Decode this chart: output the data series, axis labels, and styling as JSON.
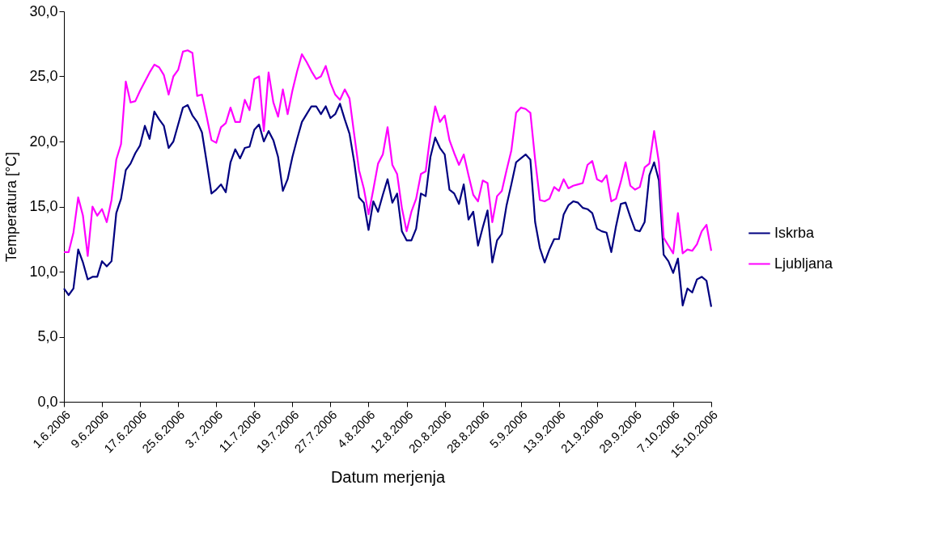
{
  "chart_data": {
    "type": "line",
    "xlabel": "Datum merjenja",
    "ylabel": "Temperatura [°C]",
    "x": [
      "2006-06-01",
      "2006-06-02",
      "2006-06-03",
      "2006-06-04",
      "2006-06-05",
      "2006-06-06",
      "2006-06-07",
      "2006-06-08",
      "2006-06-09",
      "2006-06-10",
      "2006-06-11",
      "2006-06-12",
      "2006-06-13",
      "2006-06-14",
      "2006-06-15",
      "2006-06-16",
      "2006-06-17",
      "2006-06-18",
      "2006-06-19",
      "2006-06-20",
      "2006-06-21",
      "2006-06-22",
      "2006-06-23",
      "2006-06-24",
      "2006-06-25",
      "2006-06-26",
      "2006-06-27",
      "2006-06-28",
      "2006-06-29",
      "2006-06-30",
      "2006-07-01",
      "2006-07-02",
      "2006-07-03",
      "2006-07-04",
      "2006-07-05",
      "2006-07-06",
      "2006-07-07",
      "2006-07-08",
      "2006-07-09",
      "2006-07-10",
      "2006-07-11",
      "2006-07-12",
      "2006-07-13",
      "2006-07-14",
      "2006-07-15",
      "2006-07-16",
      "2006-07-17",
      "2006-07-18",
      "2006-07-19",
      "2006-07-20",
      "2006-07-21",
      "2006-07-22",
      "2006-07-23",
      "2006-07-24",
      "2006-07-25",
      "2006-07-26",
      "2006-07-27",
      "2006-07-28",
      "2006-07-29",
      "2006-07-30",
      "2006-07-31",
      "2006-08-01",
      "2006-08-02",
      "2006-08-03",
      "2006-08-04",
      "2006-08-05",
      "2006-08-06",
      "2006-08-07",
      "2006-08-08",
      "2006-08-09",
      "2006-08-10",
      "2006-08-11",
      "2006-08-12",
      "2006-08-13",
      "2006-08-14",
      "2006-08-15",
      "2006-08-16",
      "2006-08-17",
      "2006-08-18",
      "2006-08-19",
      "2006-08-20",
      "2006-08-21",
      "2006-08-22",
      "2006-08-23",
      "2006-08-24",
      "2006-08-25",
      "2006-08-26",
      "2006-08-27",
      "2006-08-28",
      "2006-08-29",
      "2006-08-30",
      "2006-08-31",
      "2006-09-01",
      "2006-09-02",
      "2006-09-03",
      "2006-09-04",
      "2006-09-05",
      "2006-09-06",
      "2006-09-07",
      "2006-09-08",
      "2006-09-09",
      "2006-09-10",
      "2006-09-11",
      "2006-09-12",
      "2006-09-13",
      "2006-09-14",
      "2006-09-15",
      "2006-09-16",
      "2006-09-17",
      "2006-09-18",
      "2006-09-19",
      "2006-09-20",
      "2006-09-21",
      "2006-09-22",
      "2006-09-23",
      "2006-09-24",
      "2006-09-25",
      "2006-09-26",
      "2006-09-27",
      "2006-09-28",
      "2006-09-29",
      "2006-09-30",
      "2006-10-01",
      "2006-10-02",
      "2006-10-03",
      "2006-10-04",
      "2006-10-05",
      "2006-10-06",
      "2006-10-07",
      "2006-10-08",
      "2006-10-09",
      "2006-10-10",
      "2006-10-11",
      "2006-10-12",
      "2006-10-13",
      "2006-10-14",
      "2006-10-15"
    ],
    "series": [
      {
        "name": "Iskrba",
        "color": "#000080",
        "values": [
          8.7,
          8.2,
          8.7,
          11.7,
          10.7,
          9.4,
          9.6,
          9.6,
          10.8,
          10.4,
          10.8,
          14.5,
          15.6,
          17.8,
          18.3,
          19.1,
          19.7,
          21.2,
          20.2,
          22.3,
          21.7,
          21.2,
          19.5,
          20.0,
          21.3,
          22.6,
          22.8,
          22.0,
          21.5,
          20.7,
          18.4,
          16.0,
          16.3,
          16.7,
          16.1,
          18.4,
          19.4,
          18.7,
          19.5,
          19.6,
          20.9,
          21.3,
          20.0,
          20.8,
          20.1,
          18.8,
          16.2,
          17.1,
          18.8,
          20.2,
          21.5,
          22.1,
          22.7,
          22.7,
          22.1,
          22.7,
          21.8,
          22.1,
          22.9,
          21.7,
          20.6,
          18.4,
          15.7,
          15.3,
          13.2,
          15.4,
          14.6,
          15.9,
          17.1,
          15.3,
          16.0,
          13.1,
          12.4,
          12.4,
          13.3,
          16.0,
          15.8,
          18.8,
          20.3,
          19.5,
          19.0,
          16.3,
          16.0,
          15.2,
          16.7,
          14.0,
          14.6,
          12.0,
          13.4,
          14.7,
          10.7,
          12.4,
          12.9,
          15.1,
          16.7,
          18.4,
          18.7,
          19.0,
          18.6,
          13.8,
          11.8,
          10.7,
          11.7,
          12.5,
          12.5,
          14.4,
          15.1,
          15.4,
          15.3,
          14.9,
          14.8,
          14.5,
          13.3,
          13.1,
          13.0,
          11.5,
          13.5,
          15.2,
          15.3,
          14.2,
          13.2,
          13.1,
          13.8,
          17.4,
          18.4,
          17.0,
          11.3,
          10.8,
          9.9,
          11.0,
          7.4,
          8.7,
          8.4,
          9.4,
          9.6,
          9.3,
          7.3
        ]
      },
      {
        "name": "Ljubljana",
        "color": "#ff00ff",
        "values": [
          11.5,
          11.5,
          13.0,
          15.7,
          14.3,
          11.2,
          15.0,
          14.3,
          14.8,
          13.8,
          15.5,
          18.6,
          19.8,
          24.6,
          23.0,
          23.1,
          23.9,
          24.6,
          25.3,
          25.9,
          25.7,
          25.1,
          23.6,
          25.0,
          25.5,
          26.9,
          27.0,
          26.8,
          23.5,
          23.6,
          21.9,
          20.1,
          19.9,
          21.1,
          21.4,
          22.6,
          21.5,
          21.5,
          23.2,
          22.4,
          24.8,
          25.0,
          20.8,
          25.3,
          23.0,
          21.9,
          24.0,
          22.1,
          23.9,
          25.4,
          26.7,
          26.1,
          25.4,
          24.8,
          25.0,
          25.8,
          24.5,
          23.6,
          23.2,
          24.0,
          23.3,
          20.5,
          17.8,
          16.4,
          14.4,
          16.3,
          18.3,
          19.0,
          21.1,
          18.2,
          17.5,
          14.9,
          13.1,
          14.6,
          15.6,
          17.5,
          17.7,
          20.5,
          22.7,
          21.5,
          22.0,
          20.1,
          19.1,
          18.2,
          19.0,
          17.4,
          15.9,
          15.4,
          17.0,
          16.8,
          13.8,
          15.8,
          16.2,
          17.8,
          19.3,
          22.2,
          22.6,
          22.5,
          22.2,
          18.6,
          15.5,
          15.4,
          15.6,
          16.5,
          16.2,
          17.1,
          16.4,
          16.6,
          16.7,
          16.8,
          18.2,
          18.5,
          17.1,
          16.9,
          17.4,
          15.4,
          15.6,
          16.9,
          18.4,
          16.6,
          16.3,
          16.5,
          18.0,
          18.3,
          20.8,
          18.4,
          12.6,
          12.0,
          11.4,
          14.5,
          11.4,
          11.7,
          11.6,
          12.1,
          13.1,
          13.6,
          11.6
        ]
      }
    ],
    "xlim": [
      "2006-06-01",
      "2006-10-15"
    ],
    "xticks": [
      {
        "value": "2006-06-01",
        "label": "1.6.2006"
      },
      {
        "value": "2006-06-09",
        "label": "9.6.2006"
      },
      {
        "value": "2006-06-17",
        "label": "17.6.2006"
      },
      {
        "value": "2006-06-25",
        "label": "25.6.2006"
      },
      {
        "value": "2006-07-03",
        "label": "3.7.2006"
      },
      {
        "value": "2006-07-11",
        "label": "11.7.2006"
      },
      {
        "value": "2006-07-19",
        "label": "19.7.2006"
      },
      {
        "value": "2006-07-27",
        "label": "27.7.2006"
      },
      {
        "value": "2006-08-04",
        "label": "4.8.2006"
      },
      {
        "value": "2006-08-12",
        "label": "12.8.2006"
      },
      {
        "value": "2006-08-20",
        "label": "20.8.2006"
      },
      {
        "value": "2006-08-28",
        "label": "28.8.2006"
      },
      {
        "value": "2006-09-05",
        "label": "5.9.2006"
      },
      {
        "value": "2006-09-13",
        "label": "13.9.2006"
      },
      {
        "value": "2006-09-21",
        "label": "21.9.2006"
      },
      {
        "value": "2006-09-29",
        "label": "29.9.2006"
      },
      {
        "value": "2006-10-07",
        "label": "7.10.2006"
      },
      {
        "value": "2006-10-15",
        "label": "15.10.2006"
      }
    ],
    "ylim": [
      0,
      30
    ],
    "yticks": [
      {
        "value": 0,
        "label": "0,0"
      },
      {
        "value": 5,
        "label": "5,0"
      },
      {
        "value": 10,
        "label": "10,0"
      },
      {
        "value": 15,
        "label": "15,0"
      },
      {
        "value": 20,
        "label": "20,0"
      },
      {
        "value": 25,
        "label": "25,0"
      },
      {
        "value": 30,
        "label": "30,0"
      }
    ],
    "grid": false,
    "legend": "right",
    "marker": "none",
    "line_style": "solid"
  }
}
